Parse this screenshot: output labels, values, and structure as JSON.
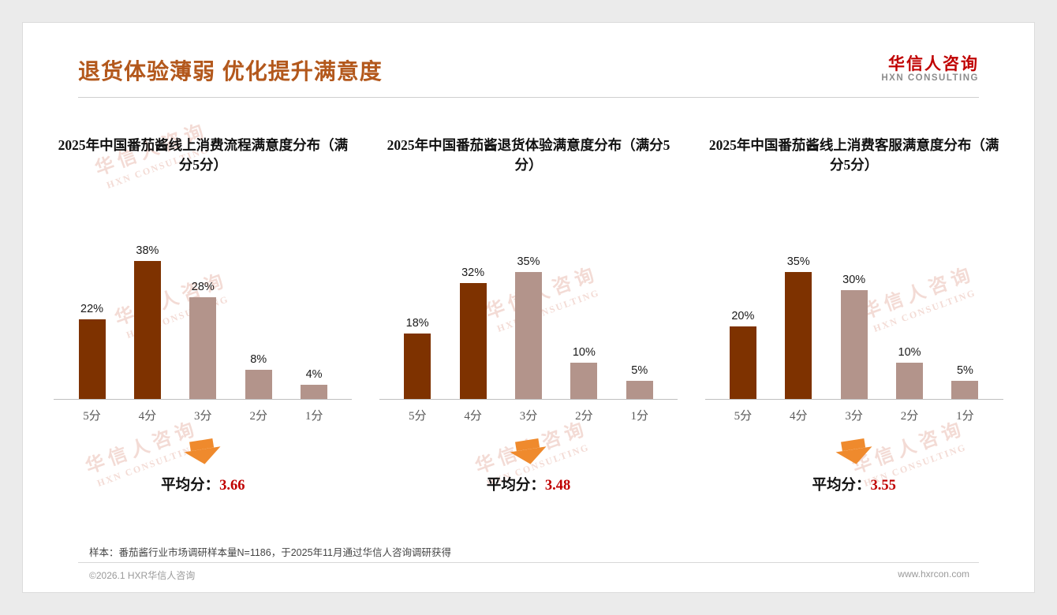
{
  "header": {
    "title": "退货体验薄弱 优化提升满意度",
    "logo_cn": "华信人咨询",
    "logo_en": "HXN CONSULTING"
  },
  "watermark": {
    "cn": "华信人咨询",
    "en": "HXN CONSULTING"
  },
  "footer": {
    "footnote": "样本：番茄酱行业市场调研样本量N=1186，于2025年11月通过华信人咨询调研获得",
    "copyright": "©2026.1 HXR华信人咨询",
    "website": "www.hxrcon.com"
  },
  "colors": {
    "title": "#b3581c",
    "logo_red": "#c00000",
    "bar_dark": "#7e3200",
    "bar_light": "#b3948b",
    "arrow": "#ef8a2d",
    "average_value": "#c00000"
  },
  "chart_data": [
    {
      "type": "bar",
      "title": "2025年中国番茄酱线上消费流程满意度分布（满分5分）",
      "categories": [
        "5分",
        "4分",
        "3分",
        "2分",
        "1分"
      ],
      "values": [
        22,
        38,
        28,
        8,
        4
      ],
      "value_labels": [
        "22%",
        "38%",
        "28%",
        "8%",
        "4%"
      ],
      "ylim": [
        0,
        40
      ],
      "grid": false,
      "bar_colors": [
        "#7e3200",
        "#7e3200",
        "#b3948b",
        "#b3948b",
        "#b3948b"
      ],
      "average_prefix": "平均分：",
      "average": "3.66"
    },
    {
      "type": "bar",
      "title": "2025年中国番茄酱退货体验满意度分布（满分5分）",
      "categories": [
        "5分",
        "4分",
        "3分",
        "2分",
        "1分"
      ],
      "values": [
        18,
        32,
        35,
        10,
        5
      ],
      "value_labels": [
        "18%",
        "32%",
        "35%",
        "10%",
        "5%"
      ],
      "ylim": [
        0,
        40
      ],
      "grid": false,
      "bar_colors": [
        "#7e3200",
        "#7e3200",
        "#b3948b",
        "#b3948b",
        "#b3948b"
      ],
      "average_prefix": "平均分：",
      "average": "3.48"
    },
    {
      "type": "bar",
      "title": "2025年中国番茄酱线上消费客服满意度分布（满分5分）",
      "categories": [
        "5分",
        "4分",
        "3分",
        "2分",
        "1分"
      ],
      "values": [
        20,
        35,
        30,
        10,
        5
      ],
      "value_labels": [
        "20%",
        "35%",
        "30%",
        "10%",
        "5%"
      ],
      "ylim": [
        0,
        40
      ],
      "grid": false,
      "bar_colors": [
        "#7e3200",
        "#7e3200",
        "#b3948b",
        "#b3948b",
        "#b3948b"
      ],
      "average_prefix": "平均分：",
      "average": "3.55"
    }
  ]
}
